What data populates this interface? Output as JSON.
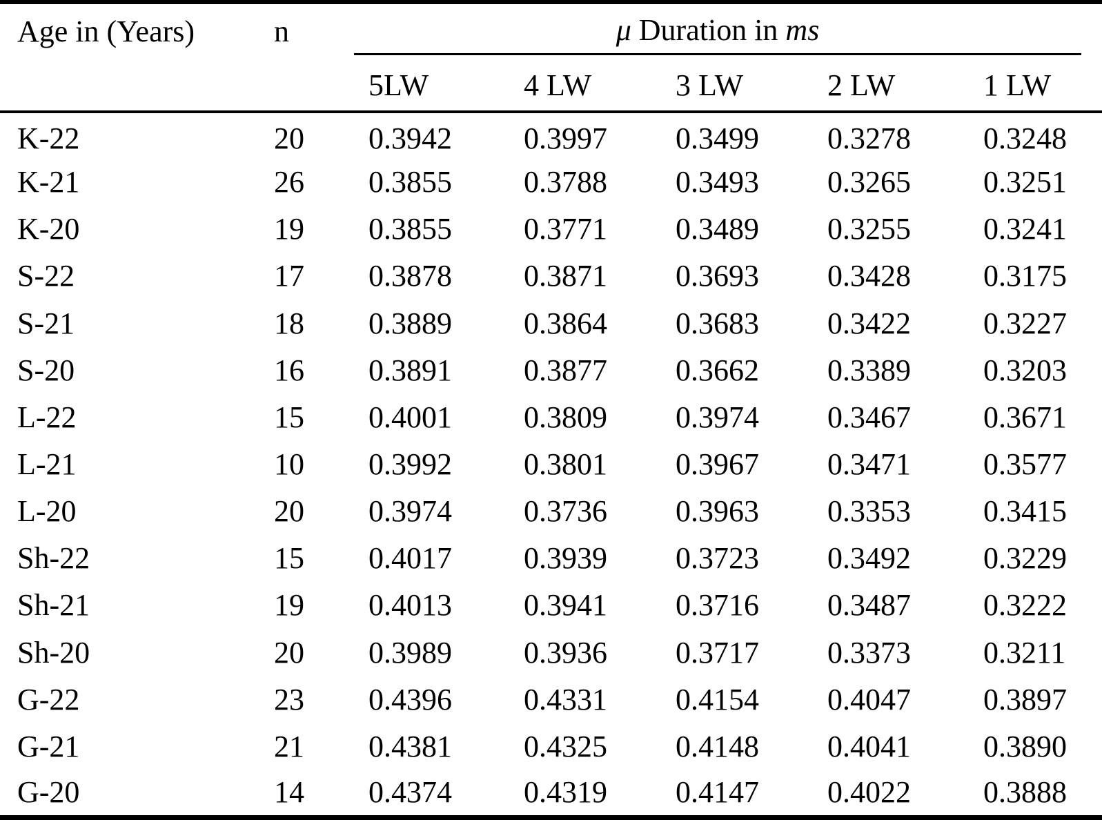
{
  "table": {
    "header": {
      "age_label": "Age in (Years)",
      "n_label": "n",
      "duration": {
        "mu": "μ",
        "text": " Duration in ",
        "unit": "ms"
      },
      "sub_headers": [
        "5LW",
        "4 LW",
        "3 LW",
        "2 LW",
        "1 LW"
      ]
    },
    "rows": [
      {
        "age": "K-22",
        "n": "20",
        "values": [
          "0.3942",
          "0.3997",
          "0.3499",
          "0.3278",
          "0.3248"
        ]
      },
      {
        "age": "K-21",
        "n": "26",
        "values": [
          "0.3855",
          "0.3788",
          "0.3493",
          "0.3265",
          "0.3251"
        ]
      },
      {
        "age": "K-20",
        "n": "19",
        "values": [
          "0.3855",
          "0.3771",
          "0.3489",
          "0.3255",
          "0.3241"
        ]
      },
      {
        "age": "S-22",
        "n": "17",
        "values": [
          "0.3878",
          "0.3871",
          "0.3693",
          "0.3428",
          "0.3175"
        ]
      },
      {
        "age": "S-21",
        "n": "18",
        "values": [
          "0.3889",
          "0.3864",
          "0.3683",
          "0.3422",
          "0.3227"
        ]
      },
      {
        "age": "S-20",
        "n": "16",
        "values": [
          "0.3891",
          "0.3877",
          "0.3662",
          "0.3389",
          "0.3203"
        ]
      },
      {
        "age": "L-22",
        "n": "15",
        "values": [
          "0.4001",
          "0.3809",
          "0.3974",
          "0.3467",
          "0.3671"
        ]
      },
      {
        "age": "L-21",
        "n": "10",
        "values": [
          "0.3992",
          "0.3801",
          "0.3967",
          "0.3471",
          "0.3577"
        ]
      },
      {
        "age": "L-20",
        "n": "20",
        "values": [
          "0.3974",
          "0.3736",
          "0.3963",
          "0.3353",
          "0.3415"
        ]
      },
      {
        "age": "Sh-22",
        "n": "15",
        "values": [
          "0.4017",
          "0.3939",
          "0.3723",
          "0.3492",
          "0.3229"
        ]
      },
      {
        "age": "Sh-21",
        "n": "19",
        "values": [
          "0.4013",
          "0.3941",
          "0.3716",
          "0.3487",
          "0.3222"
        ]
      },
      {
        "age": "Sh-20",
        "n": "20",
        "values": [
          "0.3989",
          "0.3936",
          "0.3717",
          "0.3373",
          "0.3211"
        ]
      },
      {
        "age": "G-22",
        "n": "23",
        "values": [
          "0.4396",
          "0.4331",
          "0.4154",
          "0.4047",
          "0.3897"
        ]
      },
      {
        "age": "G-21",
        "n": "21",
        "values": [
          "0.4381",
          "0.4325",
          "0.4148",
          "0.4041",
          "0.3890"
        ]
      },
      {
        "age": "G-20",
        "n": "14",
        "values": [
          "0.4374",
          "0.4319",
          "0.4147",
          "0.4022",
          "0.3888"
        ]
      }
    ]
  },
  "colors": {
    "background": "#ffffff",
    "text": "#000000",
    "rule": "#000000"
  }
}
